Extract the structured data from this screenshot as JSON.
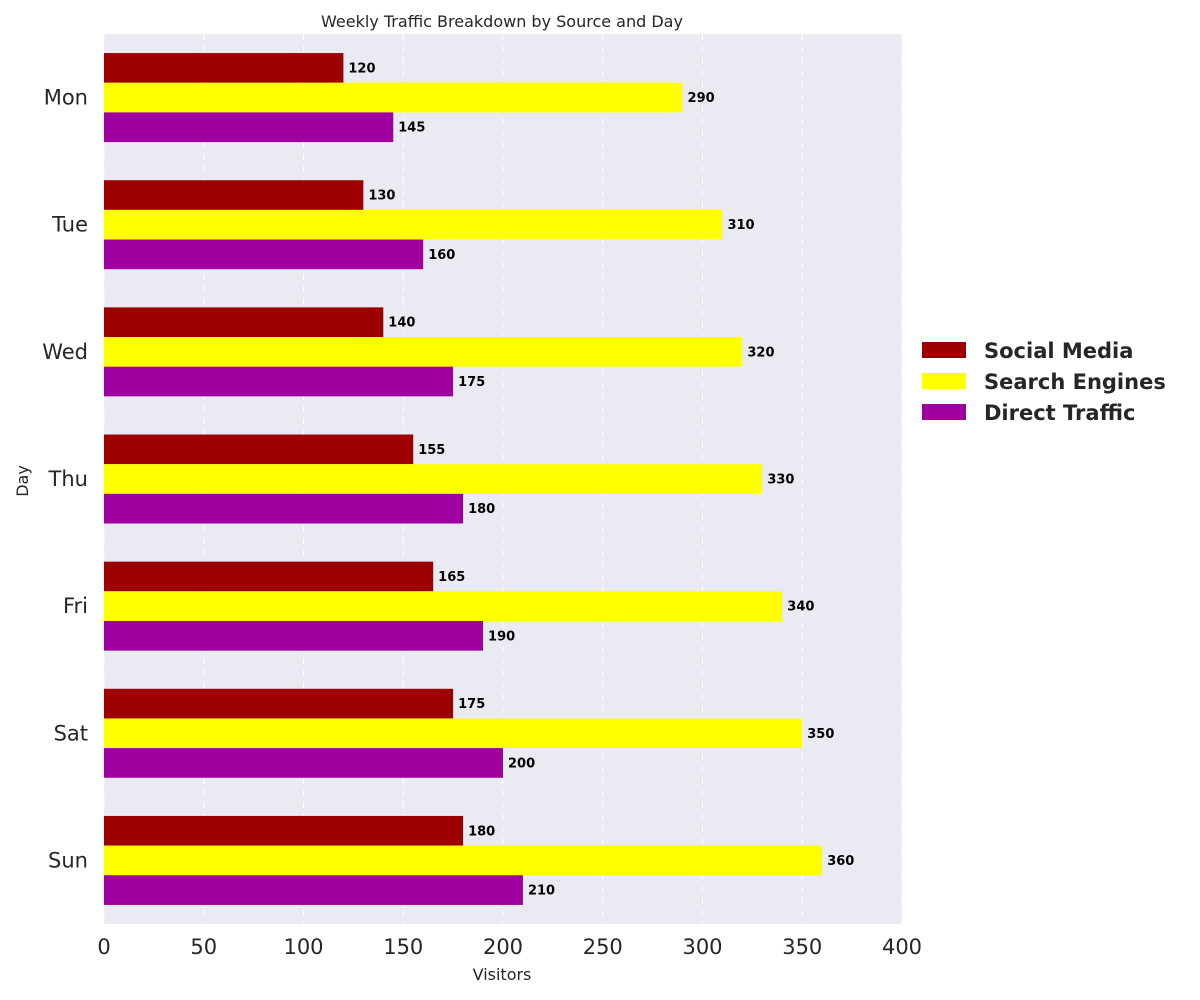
{
  "chart_data": {
    "type": "bar",
    "orientation": "horizontal",
    "title": "Weekly Traffic Breakdown by Source and Day",
    "xlabel": "Visitors",
    "ylabel": "Day",
    "categories": [
      "Mon",
      "Tue",
      "Wed",
      "Thu",
      "Fri",
      "Sat",
      "Sun"
    ],
    "series": [
      {
        "name": "Social Media",
        "color": "#9e0000",
        "values": [
          120,
          130,
          140,
          155,
          165,
          175,
          180
        ]
      },
      {
        "name": "Search Engines",
        "color": "#ffff00",
        "values": [
          290,
          310,
          320,
          330,
          340,
          350,
          360
        ]
      },
      {
        "name": "Direct Traffic",
        "color": "#a000a0",
        "values": [
          145,
          160,
          175,
          180,
          190,
          200,
          210
        ]
      }
    ],
    "xlim": [
      0,
      400
    ],
    "xticks": [
      0,
      50,
      100,
      150,
      200,
      250,
      300,
      350,
      400
    ],
    "grid": "vertical dashed",
    "legend_position": "right",
    "background_color": "#eaeaf2"
  }
}
